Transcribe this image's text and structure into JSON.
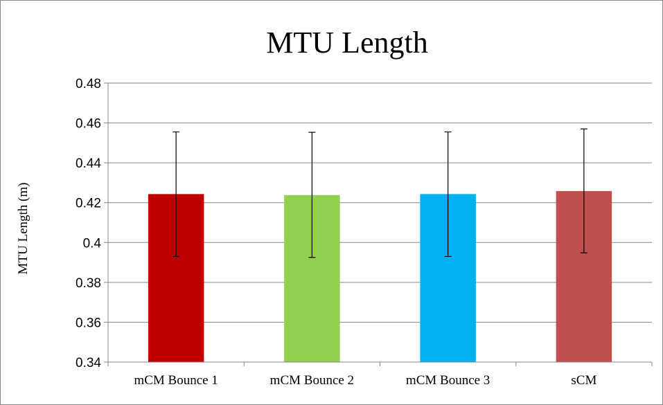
{
  "chart_data": {
    "type": "bar",
    "title": "MTU Length",
    "xlabel": "",
    "ylabel": "MTU Length (m)",
    "ylim": [
      0.34,
      0.48
    ],
    "yticks": [
      "0.34",
      "0.36",
      "0.38",
      "0.4",
      "0.42",
      "0.44",
      "0.46",
      "0.48"
    ],
    "categories": [
      "mCM Bounce 1",
      "mCM Bounce 2",
      "mCM Bounce 3",
      "sCM"
    ],
    "values": [
      0.4243,
      0.4238,
      0.4243,
      0.4258
    ],
    "error_low": [
      0.393,
      0.3925,
      0.393,
      0.3948
    ],
    "error_high": [
      0.4555,
      0.4553,
      0.4555,
      0.457
    ],
    "colors": [
      "#c00000",
      "#92d050",
      "#00b0f0",
      "#c0504d"
    ],
    "grid": true,
    "legend": "none"
  }
}
